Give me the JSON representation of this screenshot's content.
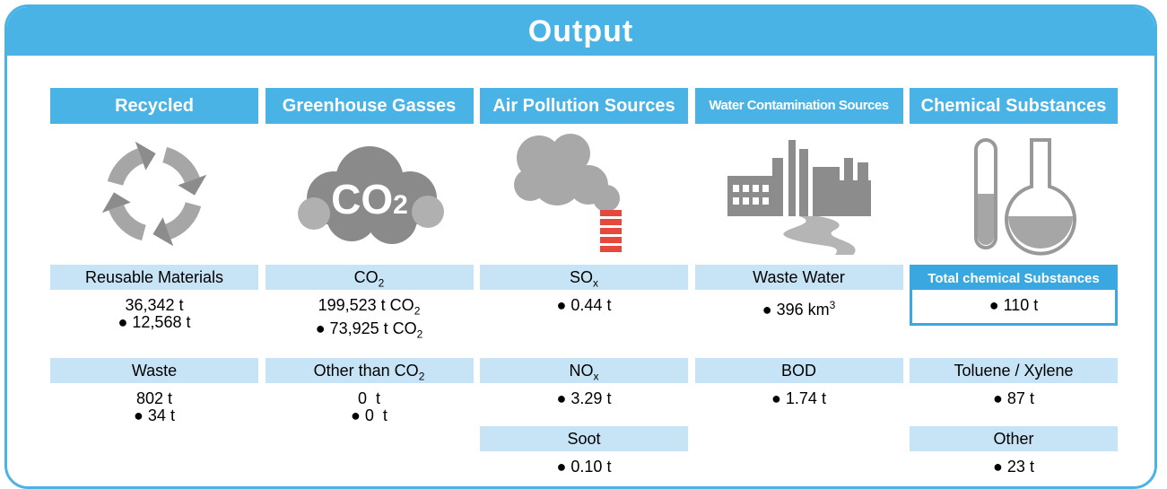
{
  "title": "Output",
  "columns": [
    {
      "header": "Recycled",
      "groups": [
        {
          "label": {
            "text": "Reusable Materials"
          },
          "lines": [
            {
              "text": "36,342 t"
            },
            {
              "text": "● 12,568 t"
            }
          ]
        },
        {
          "label": {
            "text": "Waste"
          },
          "lines": [
            {
              "text": "802 t"
            },
            {
              "text": "● 34 t"
            }
          ]
        }
      ]
    },
    {
      "header": "Greenhouse Gasses",
      "icon": {
        "text": "CO",
        "sub": "2"
      },
      "groups": [
        {
          "label": {
            "text": "CO",
            "sub": "2"
          },
          "lines": [
            {
              "text": "199,523 t CO",
              "sub": "2"
            },
            {
              "text": "● 73,925 t CO",
              "sub": "2"
            }
          ]
        },
        {
          "label": {
            "text": "Other than CO",
            "sub": "2"
          },
          "lines": [
            {
              "text": "0  t"
            },
            {
              "text": "● 0  t"
            }
          ]
        }
      ]
    },
    {
      "header": "Air Pollution Sources",
      "groups": [
        {
          "label": {
            "text": "SO",
            "sub": "x"
          },
          "lines": [
            {
              "text": "● 0.44 t"
            }
          ]
        },
        {
          "label": {
            "text": "NO",
            "sub": "x"
          },
          "lines": [
            {
              "text": "● 3.29 t"
            }
          ]
        },
        {
          "label": {
            "text": "Soot"
          },
          "lines": [
            {
              "text": "● 0.10 t"
            }
          ]
        }
      ]
    },
    {
      "header": "Water Contamination Sources",
      "groups": [
        {
          "label": {
            "text": "Waste Water"
          },
          "lines": [
            {
              "text": "● 396 km",
              "sup": "3"
            }
          ]
        },
        {
          "label": {
            "text": "BOD"
          },
          "lines": [
            {
              "text": "● 1.74 t"
            }
          ]
        }
      ]
    },
    {
      "header": "Chemical Substances",
      "groups": [
        {
          "label": {
            "text": "Total chemical Substances"
          },
          "boxed": true,
          "lines": [
            {
              "text": "● 110 t"
            }
          ]
        },
        {
          "label": {
            "text": "Toluene / Xylene"
          },
          "lines": [
            {
              "text": "● 87 t"
            }
          ]
        },
        {
          "label": {
            "text": "Other"
          },
          "lines": [
            {
              "text": "● 23 t"
            }
          ]
        }
      ]
    }
  ]
}
